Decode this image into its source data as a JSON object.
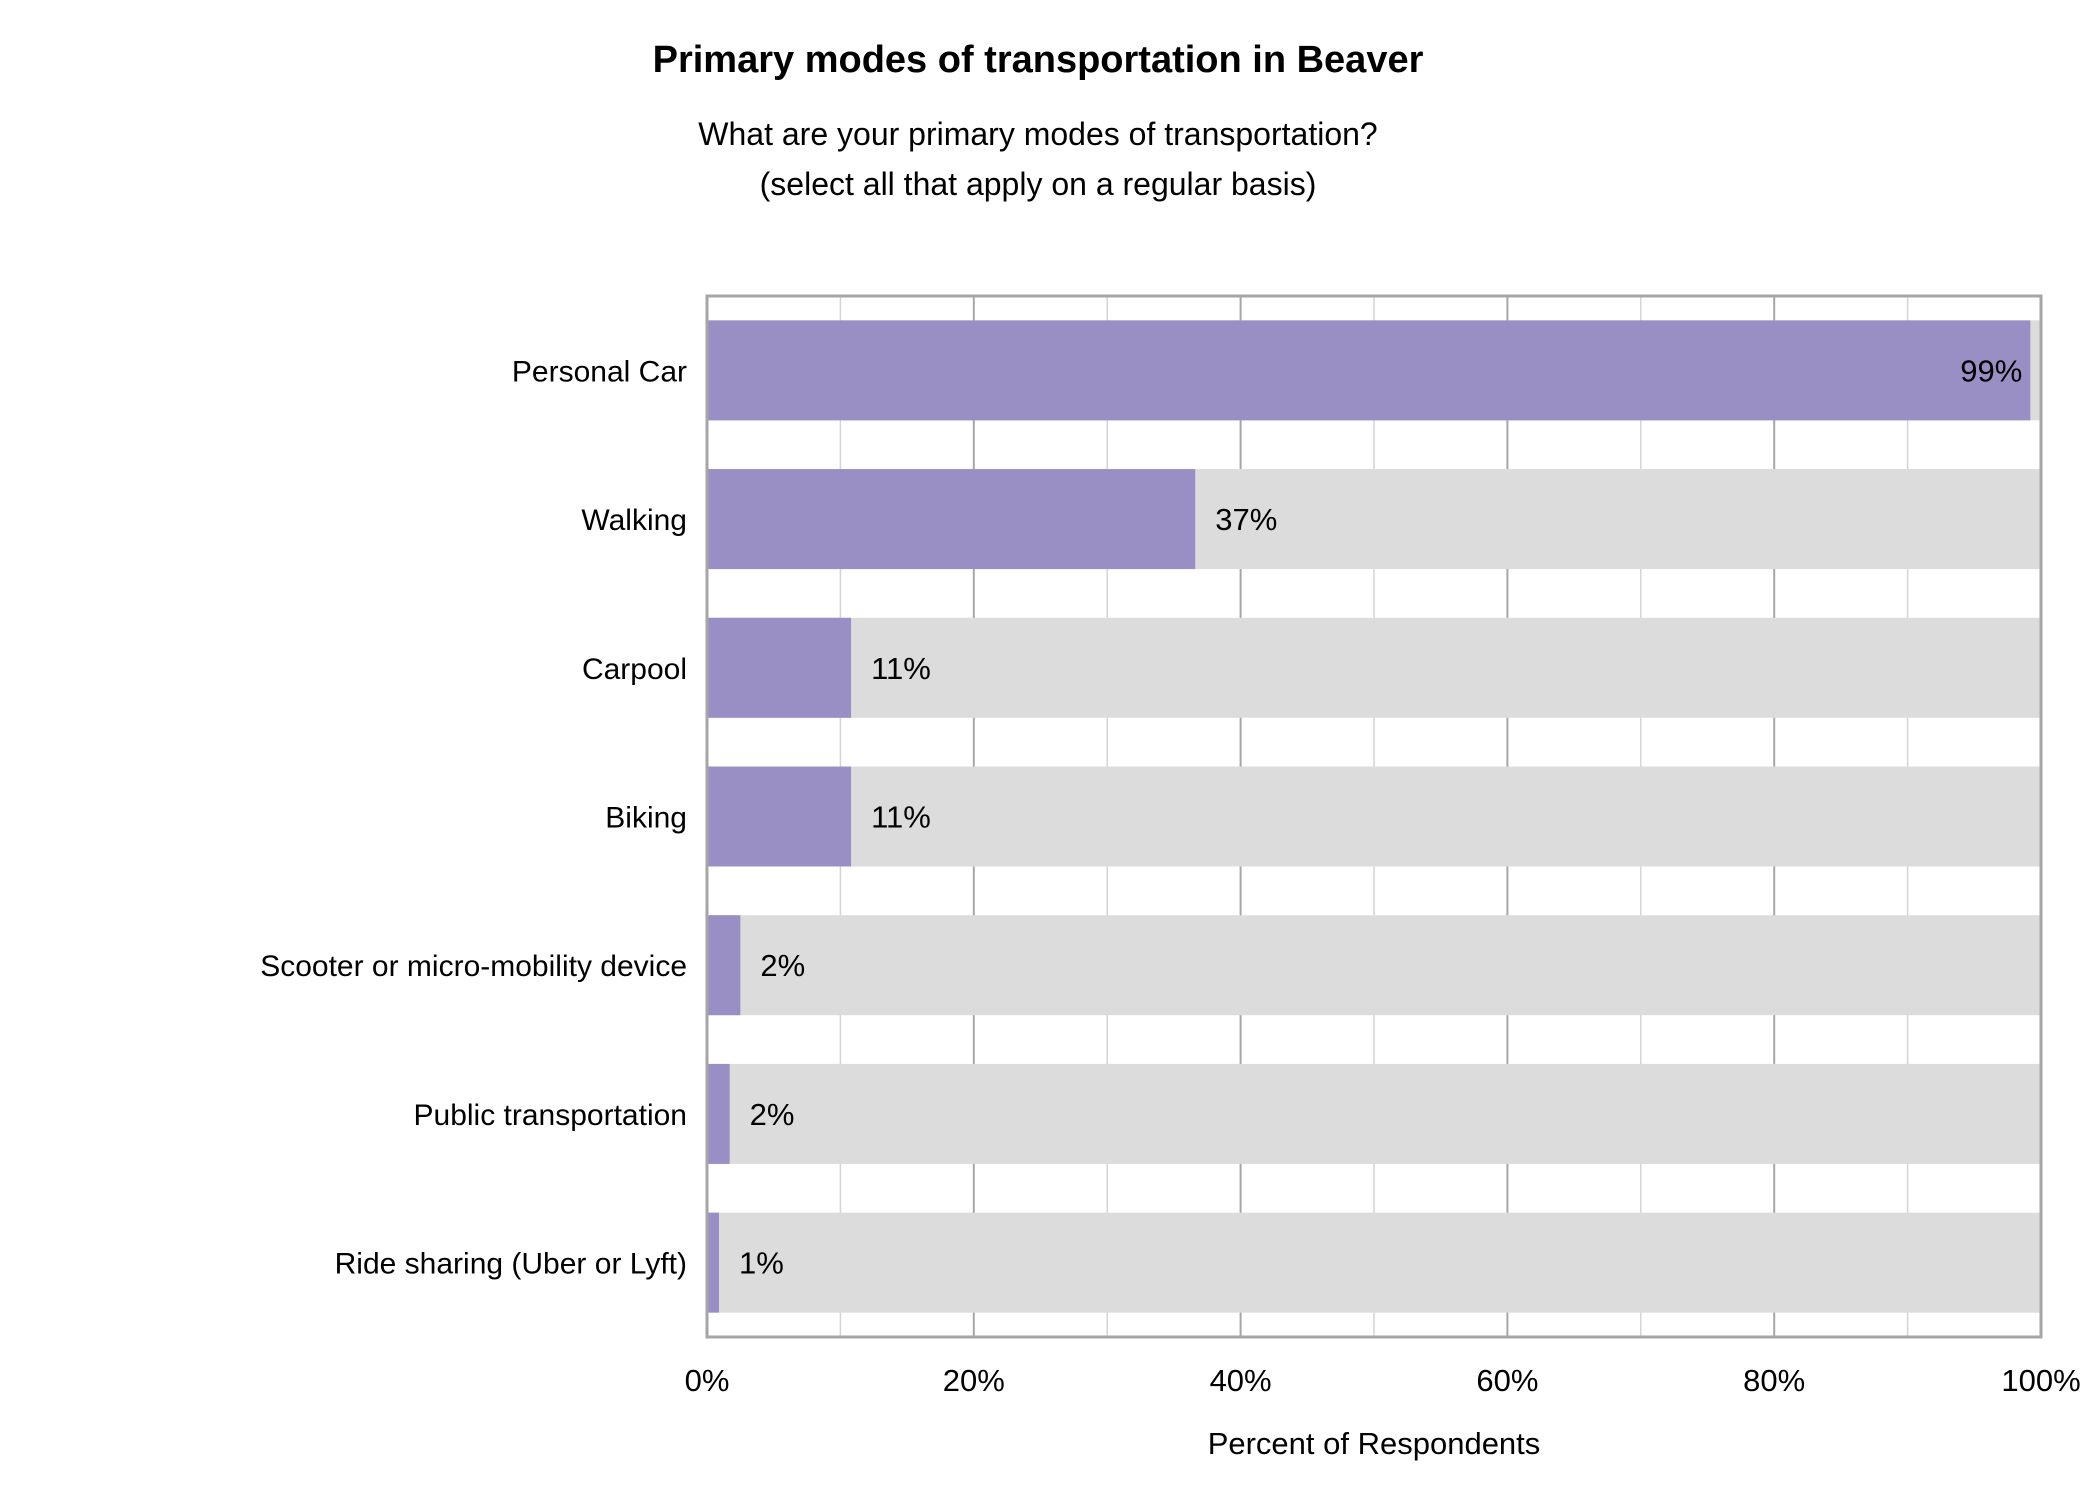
{
  "chart_data": {
    "type": "bar",
    "orientation": "horizontal",
    "title": "Primary modes of transportation in Beaver",
    "subtitle": [
      "What are your primary modes of transportation?",
      "(select all that apply on a regular basis)"
    ],
    "xlabel": "Percent of Respondents",
    "ylabel": "",
    "xlim": [
      0,
      100
    ],
    "x_ticks": [
      "0%",
      "20%",
      "40%",
      "60%",
      "80%",
      "100%"
    ],
    "grid": true,
    "categories": [
      "Personal Car",
      "Walking",
      "Carpool",
      "Biking",
      "Scooter or micro-mobility device",
      "Public transportation",
      "Ride sharing (Uber or Lyft)"
    ],
    "values": [
      99.2,
      36.6,
      10.8,
      10.8,
      2.5,
      1.7,
      0.9
    ],
    "data_labels": [
      "99%",
      "37%",
      "11%",
      "11%",
      "2%",
      "2%",
      "1%"
    ],
    "colors": {
      "bar": "#998fc4",
      "background_bar": "#dcdcdc",
      "grid_major": "#a6a6a6",
      "grid_minor": "#d4d4d4",
      "frame": "#a6a6a6"
    }
  }
}
